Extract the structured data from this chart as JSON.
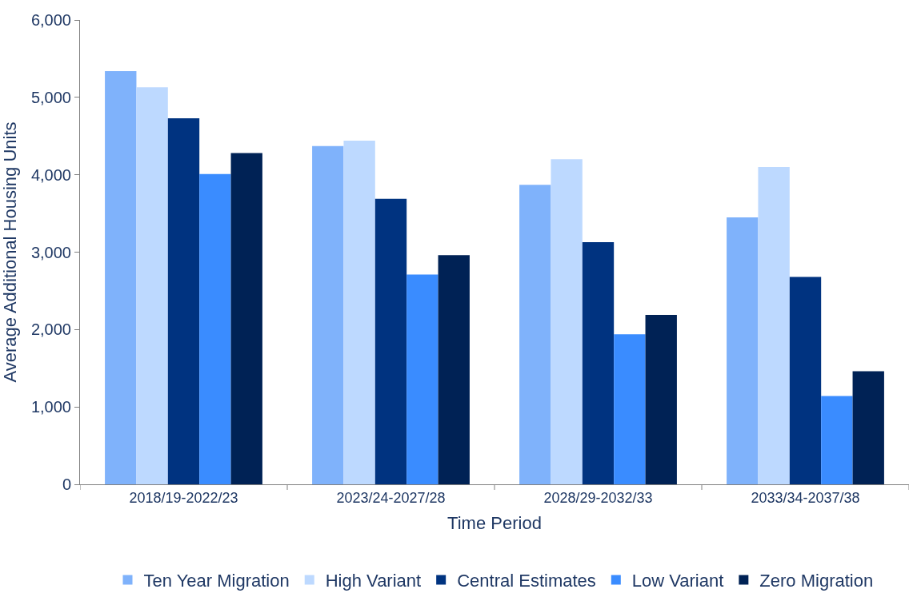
{
  "chart_data": {
    "type": "bar",
    "xlabel": "Time Period",
    "ylabel": "Average Additional Housing Units",
    "categories": [
      "2018/19-2022/23",
      "2023/24-2027/28",
      "2028/29-2032/33",
      "2033/34-2037/38"
    ],
    "series": [
      {
        "name": "Ten Year Migration",
        "color": "#7fb2fb",
        "values": [
          5340,
          4370,
          3870,
          3450
        ]
      },
      {
        "name": "High Variant",
        "color": "#bdd9ff",
        "values": [
          5130,
          4440,
          4200,
          4100
        ]
      },
      {
        "name": "Central Estimates",
        "color": "#003380",
        "values": [
          4730,
          3690,
          3130,
          2680
        ]
      },
      {
        "name": "Low Variant",
        "color": "#3a8cff",
        "values": [
          4010,
          2710,
          1940,
          1140
        ]
      },
      {
        "name": "Zero Migration",
        "color": "#002255",
        "values": [
          4280,
          2960,
          2190,
          1460
        ]
      }
    ],
    "ylim": [
      0,
      6000
    ],
    "yticks": [
      {
        "value": 0,
        "label": "0"
      },
      {
        "value": 1000,
        "label": "1,000"
      },
      {
        "value": 2000,
        "label": "2,000"
      },
      {
        "value": 3000,
        "label": "3,000"
      },
      {
        "value": 4000,
        "label": "4,000"
      },
      {
        "value": 5000,
        "label": "5,000"
      },
      {
        "value": 6000,
        "label": "6,000"
      }
    ],
    "legend": "bottom"
  }
}
